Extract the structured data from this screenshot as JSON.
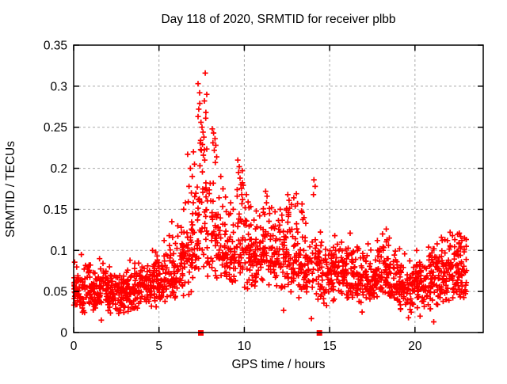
{
  "window": {
    "background": "#ffffff"
  },
  "chart_data": {
    "type": "scatter",
    "title": "Day 118 of 2020, SRMTID for receiver plbb",
    "xlabel": "GPS time / hours",
    "ylabel": "SRMTID / TECUs",
    "xlim": [
      0,
      24
    ],
    "ylim": [
      0,
      0.35
    ],
    "xticks": {
      "values": [
        0,
        5,
        10,
        15,
        20
      ],
      "labels": [
        "0",
        "5",
        "10",
        "15",
        "20"
      ]
    },
    "yticks": {
      "values": [
        0,
        0.05,
        0.1,
        0.15,
        0.2,
        0.25,
        0.3,
        0.35
      ],
      "labels": [
        "0",
        "0.05",
        "0.1",
        "0.15",
        "0.2",
        "0.25",
        "0.3",
        "0.35"
      ]
    },
    "grid": {
      "visible": true,
      "style": "dashed",
      "color": "#aaaaaa"
    },
    "marker": {
      "shape": "plus",
      "color": "#ff0000",
      "size": 7
    },
    "legend": null,
    "point_bins": {
      "format": [
        "x_start",
        "x_end",
        "count",
        "y_min",
        "y_max",
        "y_mode"
      ],
      "bins": [
        [
          0.0,
          0.5,
          42,
          0.025,
          0.088,
          0.048
        ],
        [
          0.5,
          1.0,
          42,
          0.022,
          0.095,
          0.05
        ],
        [
          1.0,
          1.5,
          42,
          0.02,
          0.082,
          0.046
        ],
        [
          1.5,
          2.0,
          42,
          0.024,
          0.09,
          0.05
        ],
        [
          2.0,
          2.5,
          42,
          0.02,
          0.078,
          0.044
        ],
        [
          2.5,
          3.0,
          42,
          0.022,
          0.076,
          0.046
        ],
        [
          3.0,
          3.5,
          42,
          0.02,
          0.082,
          0.05
        ],
        [
          3.5,
          4.0,
          42,
          0.025,
          0.088,
          0.052
        ],
        [
          4.0,
          4.5,
          42,
          0.028,
          0.092,
          0.054
        ],
        [
          4.5,
          5.0,
          42,
          0.026,
          0.102,
          0.055
        ],
        [
          5.0,
          5.5,
          40,
          0.03,
          0.108,
          0.06
        ],
        [
          5.5,
          6.0,
          40,
          0.032,
          0.122,
          0.065
        ],
        [
          6.0,
          6.5,
          40,
          0.04,
          0.132,
          0.07
        ],
        [
          6.5,
          7.0,
          38,
          0.042,
          0.165,
          0.08
        ],
        [
          7.0,
          7.4,
          30,
          0.05,
          0.2,
          0.1
        ],
        [
          7.4,
          7.8,
          26,
          0.06,
          0.245,
          0.115
        ],
        [
          7.8,
          8.2,
          28,
          0.06,
          0.21,
          0.1
        ],
        [
          8.2,
          8.6,
          30,
          0.06,
          0.185,
          0.095
        ],
        [
          8.6,
          9.1,
          34,
          0.055,
          0.16,
          0.09
        ],
        [
          9.1,
          9.55,
          32,
          0.055,
          0.155,
          0.088
        ],
        [
          9.55,
          10.0,
          32,
          0.06,
          0.2,
          0.095
        ],
        [
          10.0,
          10.5,
          38,
          0.05,
          0.165,
          0.09
        ],
        [
          10.5,
          11.0,
          38,
          0.05,
          0.15,
          0.085
        ],
        [
          11.0,
          11.5,
          38,
          0.05,
          0.168,
          0.088
        ],
        [
          11.5,
          12.0,
          38,
          0.048,
          0.155,
          0.085
        ],
        [
          12.0,
          12.5,
          38,
          0.045,
          0.155,
          0.088
        ],
        [
          12.5,
          13.0,
          38,
          0.045,
          0.165,
          0.088
        ],
        [
          13.0,
          13.5,
          36,
          0.04,
          0.16,
          0.082
        ],
        [
          13.5,
          14.0,
          34,
          0.038,
          0.135,
          0.072
        ],
        [
          14.0,
          14.5,
          32,
          0.034,
          0.145,
          0.068
        ],
        [
          14.5,
          15.0,
          32,
          0.03,
          0.115,
          0.062
        ],
        [
          15.0,
          15.5,
          38,
          0.032,
          0.115,
          0.06
        ],
        [
          15.5,
          16.0,
          40,
          0.034,
          0.112,
          0.062
        ],
        [
          16.0,
          16.5,
          40,
          0.034,
          0.122,
          0.064
        ],
        [
          16.5,
          17.0,
          40,
          0.03,
          0.11,
          0.06
        ],
        [
          17.0,
          17.5,
          40,
          0.03,
          0.105,
          0.056
        ],
        [
          17.5,
          18.0,
          40,
          0.032,
          0.112,
          0.06
        ],
        [
          18.0,
          18.5,
          40,
          0.034,
          0.124,
          0.062
        ],
        [
          18.5,
          19.0,
          40,
          0.03,
          0.108,
          0.056
        ],
        [
          19.0,
          19.5,
          40,
          0.026,
          0.1,
          0.054
        ],
        [
          19.5,
          20.0,
          40,
          0.022,
          0.1,
          0.05
        ],
        [
          20.0,
          20.5,
          40,
          0.028,
          0.1,
          0.054
        ],
        [
          20.5,
          21.0,
          40,
          0.024,
          0.104,
          0.054
        ],
        [
          21.0,
          21.5,
          40,
          0.022,
          0.11,
          0.056
        ],
        [
          21.5,
          22.0,
          40,
          0.03,
          0.118,
          0.06
        ],
        [
          22.0,
          22.5,
          42,
          0.034,
          0.124,
          0.064
        ],
        [
          22.5,
          23.05,
          44,
          0.036,
          0.122,
          0.064
        ]
      ]
    },
    "points_explicit": [
      [
        7.71,
        0.316
      ],
      [
        7.29,
        0.303
      ],
      [
        7.38,
        0.292
      ],
      [
        7.8,
        0.29
      ],
      [
        7.66,
        0.282
      ],
      [
        7.39,
        0.279
      ],
      [
        7.33,
        0.272
      ],
      [
        7.75,
        0.268
      ],
      [
        7.29,
        0.263
      ],
      [
        7.74,
        0.261
      ],
      [
        7.46,
        0.256
      ],
      [
        7.52,
        0.25
      ],
      [
        7.58,
        0.244
      ],
      [
        7.63,
        0.238
      ],
      [
        7.44,
        0.234
      ],
      [
        7.55,
        0.229
      ],
      [
        7.48,
        0.222
      ],
      [
        7.6,
        0.216
      ],
      [
        7.68,
        0.21
      ],
      [
        8.12,
        0.248
      ],
      [
        8.2,
        0.243
      ],
      [
        8.28,
        0.236
      ],
      [
        8.16,
        0.231
      ],
      [
        8.33,
        0.228
      ],
      [
        8.24,
        0.222
      ],
      [
        8.38,
        0.214
      ],
      [
        8.3,
        0.207
      ],
      [
        6.68,
        0.217
      ],
      [
        6.84,
        0.2
      ],
      [
        6.95,
        0.19
      ],
      [
        7.02,
        0.22
      ],
      [
        7.08,
        0.205
      ],
      [
        6.76,
        0.178
      ],
      [
        6.9,
        0.17
      ],
      [
        9.62,
        0.21
      ],
      [
        9.7,
        0.202
      ],
      [
        9.66,
        0.195
      ],
      [
        9.75,
        0.188
      ],
      [
        9.8,
        0.18
      ],
      [
        9.58,
        0.174
      ],
      [
        9.85,
        0.168
      ],
      [
        9.9,
        0.162
      ],
      [
        10.12,
        0.168
      ],
      [
        10.22,
        0.159
      ],
      [
        10.05,
        0.152
      ],
      [
        11.25,
        0.172
      ],
      [
        11.33,
        0.166
      ],
      [
        11.3,
        0.158
      ],
      [
        12.55,
        0.168
      ],
      [
        12.62,
        0.161
      ],
      [
        12.76,
        0.156
      ],
      [
        12.9,
        0.164
      ],
      [
        13.05,
        0.169
      ],
      [
        13.12,
        0.157
      ],
      [
        12.48,
        0.151
      ],
      [
        14.08,
        0.186
      ],
      [
        14.15,
        0.178
      ],
      [
        14.05,
        0.168
      ],
      [
        8.62,
        0.19
      ],
      [
        8.75,
        0.175
      ],
      [
        8.9,
        0.165
      ],
      [
        9.2,
        0.158
      ],
      [
        9.35,
        0.15
      ],
      [
        10.7,
        0.148
      ],
      [
        10.9,
        0.142
      ],
      [
        11.6,
        0.152
      ],
      [
        11.8,
        0.147
      ],
      [
        12.1,
        0.15
      ],
      [
        12.2,
        0.143
      ],
      [
        13.35,
        0.148
      ],
      [
        13.5,
        0.14
      ],
      [
        13.6,
        0.133
      ],
      [
        5.3,
        0.112
      ],
      [
        5.6,
        0.118
      ],
      [
        5.75,
        0.135
      ],
      [
        5.8,
        0.116
      ],
      [
        6.1,
        0.13
      ],
      [
        6.3,
        0.128
      ],
      [
        6.45,
        0.15
      ],
      [
        6.55,
        0.158
      ],
      [
        0.45,
        0.095
      ],
      [
        1.52,
        0.09
      ],
      [
        2.1,
        0.08
      ],
      [
        3.3,
        0.088
      ],
      [
        4.62,
        0.1
      ],
      [
        4.8,
        0.098
      ],
      [
        15.3,
        0.118
      ],
      [
        15.7,
        0.11
      ],
      [
        16.2,
        0.121
      ],
      [
        17.25,
        0.108
      ],
      [
        17.8,
        0.112
      ],
      [
        18.1,
        0.12
      ],
      [
        18.32,
        0.126
      ],
      [
        18.5,
        0.115
      ],
      [
        19.1,
        0.102
      ],
      [
        20.1,
        0.1
      ],
      [
        20.8,
        0.104
      ],
      [
        21.3,
        0.108
      ],
      [
        21.55,
        0.116
      ],
      [
        21.9,
        0.112
      ],
      [
        22.2,
        0.118
      ],
      [
        22.6,
        0.121
      ],
      [
        22.68,
        0.117
      ],
      [
        22.75,
        0.112
      ],
      [
        22.9,
        0.115
      ],
      [
        23.0,
        0.105
      ],
      [
        1.62,
        0.015
      ],
      [
        13.93,
        0.017
      ],
      [
        19.62,
        0.018
      ],
      [
        21.1,
        0.013
      ],
      [
        14.82,
        0.033
      ],
      [
        12.3,
        0.027
      ],
      [
        16.9,
        0.025
      ],
      [
        20.3,
        0.02
      ]
    ],
    "axis_markers": {
      "shape": "filled-square",
      "color": "#ff0000",
      "size": 7,
      "y": 0,
      "x_values": [
        7.45,
        14.4
      ]
    },
    "frame_color": "#000000"
  }
}
